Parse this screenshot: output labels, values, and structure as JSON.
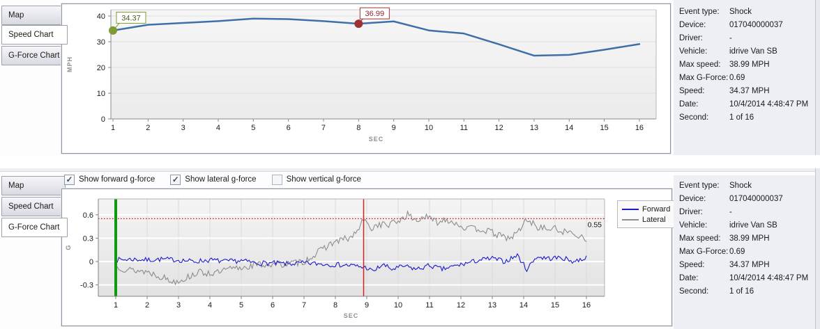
{
  "event_info": {
    "rows": [
      {
        "label": "Event type:",
        "value": "Shock"
      },
      {
        "label": "Device:",
        "value": "017040000037"
      },
      {
        "label": "Driver:",
        "value": "-"
      },
      {
        "label": "Vehicle:",
        "value": "idrive Van SB"
      },
      {
        "label": "Max speed:",
        "value": "38.99 MPH"
      },
      {
        "label": "Max G-Force:",
        "value": "0.69"
      },
      {
        "label": "Speed:",
        "value": "34.37 MPH"
      },
      {
        "label": "Date:",
        "value": "10/4/2014 4:48:47 PM"
      },
      {
        "label": "Second:",
        "value": "1 of 16"
      }
    ]
  },
  "top_panel": {
    "tabs": [
      {
        "label": "Map",
        "selected": false
      },
      {
        "label": "Speed Chart",
        "selected": true
      },
      {
        "label": "G-Force Chart",
        "selected": false
      }
    ]
  },
  "bottom_panel": {
    "tabs": [
      {
        "label": "Map",
        "selected": false
      },
      {
        "label": "Speed Chart",
        "selected": false
      },
      {
        "label": "G-Force Chart",
        "selected": true
      }
    ],
    "checkboxes": [
      {
        "label": "Show forward g-force",
        "checked": true
      },
      {
        "label": "Show lateral g-force",
        "checked": true
      },
      {
        "label": "Show vertical g-force",
        "checked": false
      }
    ]
  },
  "chart_data": [
    {
      "type": "line",
      "title": "Speed Chart",
      "xlabel": "SEC",
      "ylabel": "MPH",
      "x": [
        1,
        2,
        3,
        4,
        5,
        6,
        7,
        8,
        9,
        10,
        11,
        12,
        13,
        14,
        15,
        16
      ],
      "values": [
        34.37,
        36.6,
        37.3,
        38.0,
        38.99,
        38.8,
        38.0,
        36.99,
        37.9,
        34.4,
        33.2,
        29.0,
        24.6,
        24.9,
        26.9,
        29.1
      ],
      "yticks": [
        0,
        10,
        20,
        30,
        40
      ],
      "ylim": [
        0,
        43.5
      ],
      "line_color": "#3f6fa8",
      "grid": "horizontal",
      "markers": [
        {
          "x": 1,
          "value": 34.37,
          "label": "34.37",
          "color": "#7e9c33",
          "text_color": "#4a5c1e"
        },
        {
          "x": 8,
          "value": 36.99,
          "label": "36.99",
          "color": "#9e3133",
          "text_color": "#8c2426"
        }
      ]
    },
    {
      "type": "line",
      "title": "G-Force Chart",
      "xlabel": "SEC",
      "ylabel": "G",
      "xticks": [
        1,
        2,
        3,
        4,
        5,
        6,
        7,
        8,
        9,
        10,
        11,
        12,
        13,
        14,
        15,
        16
      ],
      "yticks": [
        -0.3,
        0,
        0.3,
        0.6
      ],
      "ylim": [
        -0.446,
        0.8
      ],
      "grid": "both",
      "legend_position": "right",
      "threshold": {
        "value": 0.55,
        "label": "0.55",
        "color": "#e00000"
      },
      "cursor_lines": [
        {
          "x": 1,
          "color": "#0f9b0f",
          "width": 4
        },
        {
          "x": 8.9,
          "color": "#d42020",
          "width": 1.5
        }
      ],
      "series": [
        {
          "name": "Forward",
          "color": "#1a1acc",
          "noise_amplitude": 0.032,
          "baseline": [
            [
              1,
              0.02
            ],
            [
              1.5,
              0.03
            ],
            [
              2,
              0.02
            ],
            [
              2.5,
              0.03
            ],
            [
              3,
              0.02
            ],
            [
              3.5,
              0.0
            ],
            [
              4,
              0.02
            ],
            [
              4.5,
              0.0
            ],
            [
              5,
              0.01
            ],
            [
              5.5,
              -0.02
            ],
            [
              6,
              -0.02
            ],
            [
              6.5,
              -0.03
            ],
            [
              7,
              -0.02
            ],
            [
              7.5,
              -0.03
            ],
            [
              8,
              -0.04
            ],
            [
              8.5,
              -0.05
            ],
            [
              9,
              -0.08
            ],
            [
              9.2,
              -0.13
            ],
            [
              9.5,
              -0.04
            ],
            [
              9.8,
              -0.1
            ],
            [
              10.2,
              -0.06
            ],
            [
              10.6,
              -0.1
            ],
            [
              11,
              -0.05
            ],
            [
              11.4,
              -0.1
            ],
            [
              11.8,
              -0.06
            ],
            [
              12.2,
              -0.02
            ],
            [
              12.6,
              0.02
            ],
            [
              13,
              0.04
            ],
            [
              13.4,
              0.0
            ],
            [
              13.8,
              0.08
            ],
            [
              14.1,
              -0.1
            ],
            [
              14.4,
              0.06
            ],
            [
              14.8,
              0.04
            ],
            [
              15.2,
              0.05
            ],
            [
              15.6,
              0.0
            ],
            [
              16,
              0.05
            ]
          ]
        },
        {
          "name": "Lateral",
          "color": "#8c8c8c",
          "noise_amplitude": 0.045,
          "baseline": [
            [
              1,
              -0.05
            ],
            [
              1.3,
              -0.1
            ],
            [
              2,
              -0.13
            ],
            [
              2.5,
              -0.2
            ],
            [
              2.8,
              -0.26
            ],
            [
              3.2,
              -0.22
            ],
            [
              3.6,
              -0.14
            ],
            [
              4.2,
              -0.15
            ],
            [
              4.6,
              -0.1
            ],
            [
              5,
              -0.08
            ],
            [
              5.5,
              -0.04
            ],
            [
              6,
              -0.04
            ],
            [
              6.5,
              -0.03
            ],
            [
              7,
              0.0
            ],
            [
              7.5,
              0.13
            ],
            [
              7.8,
              0.22
            ],
            [
              8.2,
              0.28
            ],
            [
              8.5,
              0.3
            ],
            [
              8.8,
              0.45
            ],
            [
              8.9,
              0.55
            ],
            [
              9.1,
              0.42
            ],
            [
              9.4,
              0.48
            ],
            [
              9.7,
              0.47
            ],
            [
              10,
              0.52
            ],
            [
              10.3,
              0.6
            ],
            [
              10.6,
              0.52
            ],
            [
              10.8,
              0.58
            ],
            [
              11,
              0.55
            ],
            [
              11.3,
              0.5
            ],
            [
              11.5,
              0.55
            ],
            [
              11.8,
              0.5
            ],
            [
              12.2,
              0.42
            ],
            [
              12.6,
              0.42
            ],
            [
              13,
              0.37
            ],
            [
              13.3,
              0.32
            ],
            [
              13.6,
              0.3
            ],
            [
              13.9,
              0.42
            ],
            [
              14.1,
              0.55
            ],
            [
              14.4,
              0.45
            ],
            [
              14.7,
              0.42
            ],
            [
              15,
              0.42
            ],
            [
              15.3,
              0.38
            ],
            [
              15.6,
              0.36
            ],
            [
              16,
              0.3
            ]
          ]
        }
      ]
    }
  ]
}
